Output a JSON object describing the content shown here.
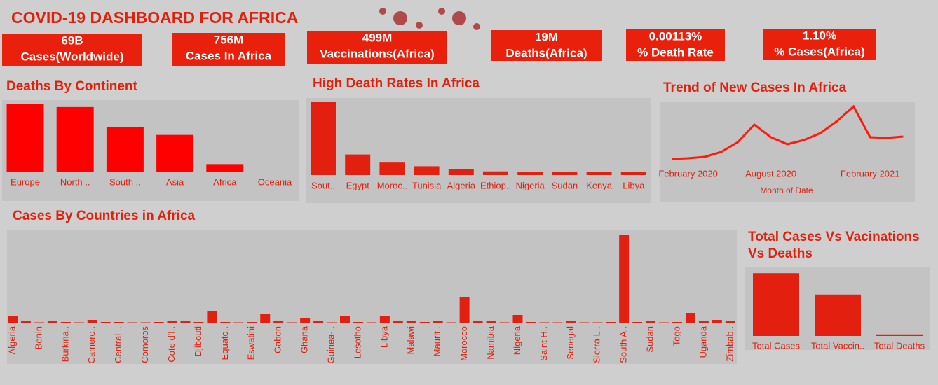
{
  "title": "COVID-19 DASHBOARD FOR AFRICA",
  "kpis": [
    {
      "value": "69B",
      "label": "Cases(Worldwide)"
    },
    {
      "value": "756M",
      "label": "Cases In Africa"
    },
    {
      "value": "499M",
      "label": "Vaccinations(Africa)"
    },
    {
      "value": "19M",
      "label": "Deaths(Africa)"
    },
    {
      "value": "0.00113%",
      "label": "% Death Rate"
    },
    {
      "value": "1.10%",
      "label": "% Cases(Africa)"
    }
  ],
  "chart_data": [
    {
      "type": "bar",
      "title": "Deaths By Continent",
      "color": "#ff0000",
      "categories": [
        "Europe",
        "North ..",
        "South ..",
        "Asia",
        "Africa",
        "Oceania"
      ],
      "values": [
        100,
        96,
        66,
        55,
        12,
        0.5
      ],
      "ylim": [
        0,
        100
      ]
    },
    {
      "type": "bar",
      "title": "High Death Rates In Africa",
      "color": "#e32010",
      "categories": [
        "Sout..",
        "Egypt",
        "Moroc..",
        "Tunisia",
        "Algeria",
        "Ethiop..",
        "Nigeria",
        "Sudan",
        "Kenya",
        "Libya"
      ],
      "values": [
        100,
        28,
        17,
        12,
        8,
        5,
        4,
        4,
        4,
        4
      ],
      "ylim": [
        0,
        100
      ]
    },
    {
      "type": "line",
      "title": "Trend of New Cases In Africa",
      "color": "#ff1a0a",
      "xlabel": "Month of Date",
      "categories": [
        null,
        "February 2020",
        null,
        null,
        null,
        null,
        "August 2020",
        null,
        null,
        null,
        null,
        null,
        "February 2021",
        null,
        null
      ],
      "values": [
        13,
        14,
        16,
        23,
        37,
        62,
        44,
        34,
        40,
        50,
        67,
        88,
        44,
        43,
        45
      ],
      "ylim": [
        0,
        100
      ]
    },
    {
      "type": "bar",
      "title": "Cases By Countries in Africa",
      "color": "#e32010",
      "rotate_labels": true,
      "categories": [
        "Algeria",
        null,
        "Benin",
        null,
        "Burkina..",
        null,
        "Camero..",
        null,
        "Central ..",
        null,
        "Comoros",
        null,
        "Cote d'I..",
        null,
        "Djibouti",
        null,
        "Equato..",
        null,
        "Eswatini",
        null,
        "Gabon",
        null,
        "Ghana",
        null,
        "Guinea-..",
        null,
        "Lesotho",
        null,
        "Libya",
        null,
        "Malawi",
        null,
        "Maurit..",
        null,
        "Morocco",
        null,
        "Namibia",
        null,
        "Nigeria",
        null,
        "Saint H..",
        null,
        "Senegal",
        null,
        "Sierra L..",
        null,
        "South A..",
        null,
        "Sudan",
        null,
        "Togo",
        null,
        "Uganda",
        null,
        "Zimbab.."
      ],
      "values": [
        9,
        2,
        0.5,
        2,
        1,
        0.5,
        4,
        1,
        1,
        0.5,
        0.5,
        1,
        3,
        3,
        1,
        17,
        1,
        0.5,
        1,
        13,
        2,
        0.5,
        7,
        2,
        0.5,
        9,
        1,
        0.5,
        9,
        2,
        2,
        1,
        2,
        0.5,
        37,
        3,
        3,
        0.5,
        11,
        1,
        0.5,
        0.5,
        2,
        0.5,
        0.5,
        1,
        126,
        1,
        2,
        0.5,
        1,
        14,
        3,
        4,
        2
      ],
      "ylim": [
        0,
        130
      ]
    },
    {
      "type": "bar",
      "title": "Total Cases Vs Vacinations Vs Deaths",
      "color": "#e32010",
      "categories": [
        "Total Cases",
        "Total Vaccin..",
        "Total Deaths"
      ],
      "values": [
        756,
        499,
        19
      ],
      "ylim": [
        0,
        800
      ]
    }
  ]
}
